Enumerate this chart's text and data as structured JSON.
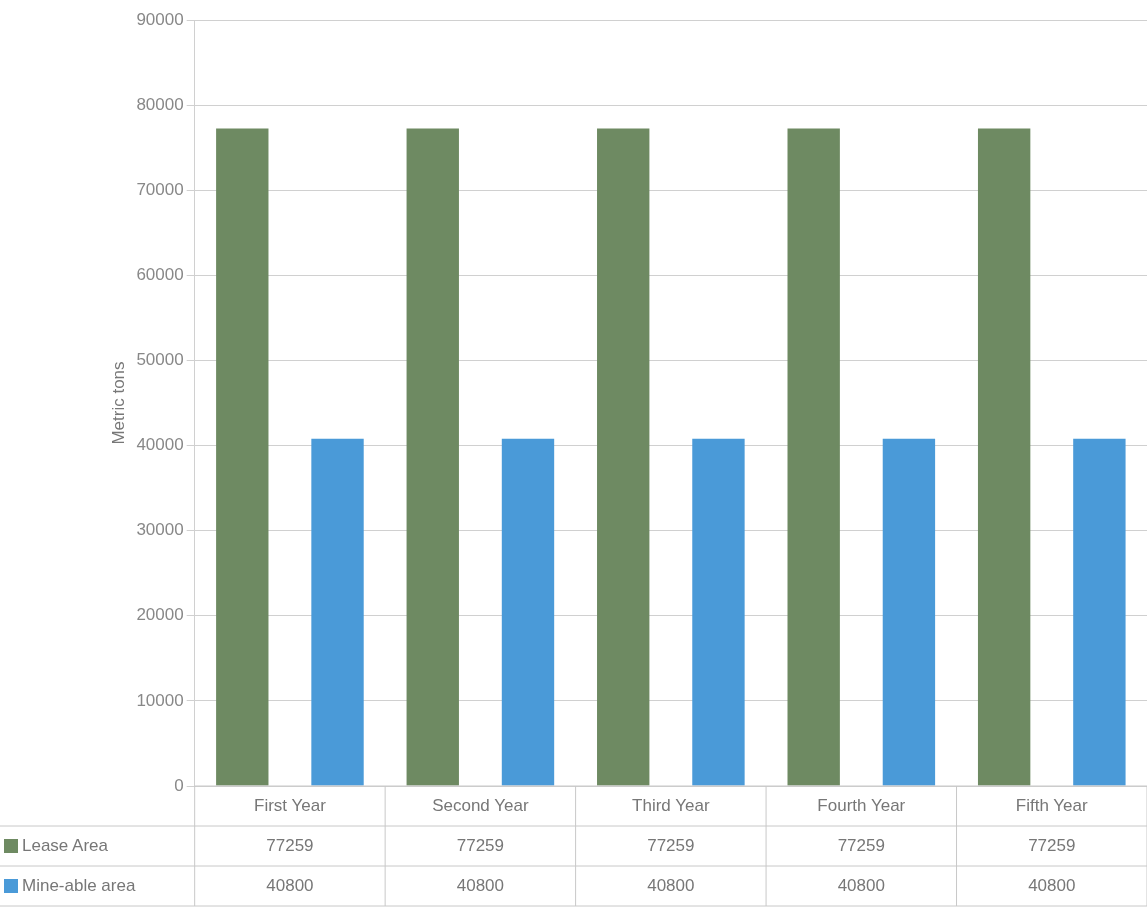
{
  "chart_data": {
    "type": "bar",
    "ylabel": "Metric tons",
    "categories": [
      "First Year",
      "Second Year",
      "Third Year",
      "Fourth Year",
      "Fifth Year"
    ],
    "series": [
      {
        "name": "Lease Area",
        "color": "#6e8a62",
        "values": [
          77259,
          77259,
          77259,
          77259,
          77259
        ]
      },
      {
        "name": "Mine-able area",
        "color": "#4a9ad8",
        "values": [
          40800,
          40800,
          40800,
          40800,
          40800
        ]
      }
    ],
    "ylim": [
      0,
      90000
    ],
    "yticks": [
      0,
      10000,
      20000,
      30000,
      40000,
      50000,
      60000,
      70000,
      80000,
      90000
    ],
    "grid": "y",
    "legend": "bottom left",
    "data_labels": true
  }
}
